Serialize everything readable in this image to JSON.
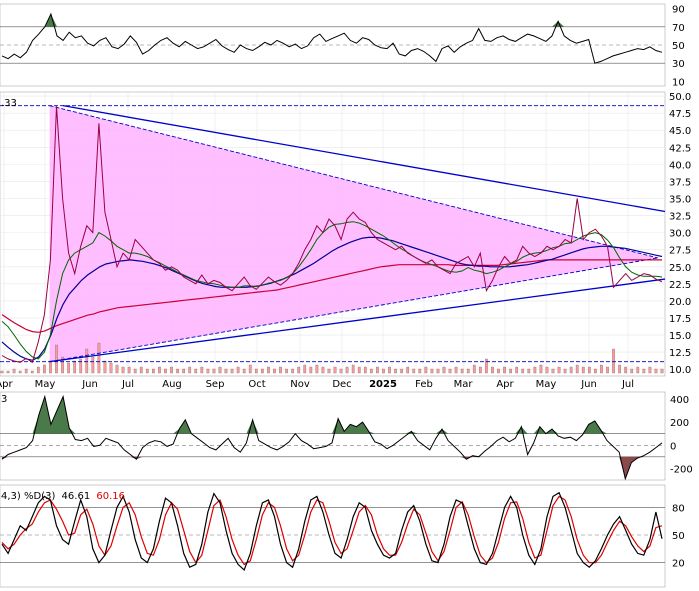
{
  "chart_data": [
    {
      "panel": "rsi",
      "type": "line",
      "y_ticks": [
        10,
        30,
        50,
        70,
        90
      ],
      "ylim": [
        5,
        95
      ],
      "guide_lines": [
        70,
        50,
        30
      ],
      "values": [
        38,
        35,
        40,
        36,
        42,
        55,
        62,
        70,
        84,
        60,
        55,
        64,
        58,
        60,
        52,
        49,
        55,
        58,
        48,
        46,
        51,
        60,
        53,
        40,
        44,
        50,
        55,
        58,
        52,
        48,
        54,
        50,
        46,
        48,
        52,
        56,
        49,
        45,
        42,
        50,
        46,
        44,
        48,
        53,
        50,
        55,
        52,
        48,
        51,
        46,
        49,
        58,
        62,
        54,
        57,
        60,
        63,
        55,
        52,
        58,
        56,
        50,
        47,
        46,
        52,
        40,
        38,
        44,
        46,
        43,
        38,
        32,
        46,
        49,
        42,
        48,
        52,
        55,
        68,
        55,
        54,
        58,
        60,
        56,
        54,
        58,
        62,
        60,
        57,
        54,
        60,
        76,
        60,
        55,
        52,
        54,
        56,
        30,
        32,
        35,
        38,
        40,
        42,
        44,
        46,
        45,
        48,
        44,
        42
      ]
    },
    {
      "panel": "price",
      "type": "line",
      "y_ticks": [
        "10.0",
        "12.5",
        "15.0",
        "17.5",
        "20.0",
        "22.5",
        "25.0",
        "27.5",
        "30.0",
        "32.5",
        "35.0",
        "37.5",
        "40.0",
        "42.5",
        "45.0",
        "47.5",
        "50.0"
      ],
      "top_left_label": ".33",
      "x_ticks": [
        "Apr",
        "May",
        "Jun",
        "Jul",
        "Aug",
        "Sep",
        "Oct",
        "Nov",
        "Dec",
        "2025",
        "Feb",
        "Mar",
        "Apr",
        "May",
        "Jun",
        "Jul"
      ],
      "price": [
        12.0,
        11.5,
        11.2,
        11.0,
        11.6,
        11.0,
        14,
        18,
        26,
        48.5,
        35,
        27,
        24,
        28,
        31,
        30,
        46,
        33,
        29,
        25,
        27,
        26,
        29,
        28,
        27,
        26,
        25.5,
        24.5,
        25,
        24.5,
        23.5,
        23,
        22.5,
        23.8,
        22.5,
        23,
        22.7,
        22,
        21.5,
        22.5,
        23.5,
        22.2,
        21.7,
        22.6,
        23.5,
        22.8,
        22.3,
        23,
        24,
        25.5,
        27.5,
        29,
        31,
        30,
        32,
        31,
        29,
        32,
        33,
        32,
        31.5,
        30,
        29,
        28.5,
        28,
        27.5,
        28,
        27,
        26.5,
        26,
        25.5,
        26,
        25,
        24.5,
        24,
        25.5,
        26,
        26.5,
        25,
        27,
        21.5,
        23,
        25,
        26.5,
        25.5,
        26,
        28,
        27,
        26.5,
        27,
        28,
        27.5,
        28,
        29,
        28.5,
        35,
        29,
        30,
        30.5,
        29.5,
        28,
        22,
        23,
        24,
        23,
        23.5,
        24,
        23.8,
        23.2,
        22.8
      ],
      "ma_long": [
        18,
        17.4,
        16.8,
        16.3,
        15.8,
        15.5,
        15.4,
        15.6,
        16,
        16.4,
        16.7,
        17,
        17.3,
        17.6,
        17.9,
        18.1,
        18.4,
        18.6,
        18.8,
        19,
        19.1,
        19.2,
        19.3,
        19.4,
        19.5,
        19.6,
        19.7,
        19.8,
        19.9,
        20,
        20.1,
        20.2,
        20.3,
        20.4,
        20.5,
        20.6,
        20.7,
        20.8,
        20.9,
        21,
        21.1,
        21.2,
        21.3,
        21.4,
        21.5,
        21.6,
        21.8,
        22,
        22.2,
        22.4,
        22.6,
        22.8,
        23,
        23.2,
        23.4,
        23.6,
        23.8,
        24,
        24.2,
        24.4,
        24.6,
        24.8,
        25,
        25.1,
        25.2,
        25.3,
        25.3,
        25.3,
        25.3,
        25.3,
        25.3,
        25.3,
        25.3,
        25.3,
        25.2,
        25.2,
        25.2,
        25.2,
        25.2,
        25.2,
        25.2,
        25.2,
        25.3,
        25.4,
        25.5,
        25.6,
        25.7,
        25.8,
        25.9,
        26,
        26,
        26,
        26,
        26,
        26,
        26,
        26,
        26,
        26,
        26,
        26,
        26,
        26,
        26,
        26,
        26,
        26,
        26,
        26
      ],
      "ma_mid": [
        14,
        13.2,
        12.5,
        11.9,
        11.5,
        11.3,
        11.8,
        13,
        15,
        17.5,
        19.5,
        21,
        22,
        23,
        23.8,
        24.4,
        25,
        25.4,
        25.6,
        25.8,
        25.9,
        26,
        25.9,
        25.8,
        25.6,
        25.4,
        25.1,
        24.8,
        24.4,
        24,
        23.6,
        23.2,
        22.8,
        22.5,
        22.3,
        22.1,
        22,
        22,
        22,
        22,
        22,
        22.1,
        22.2,
        22.4,
        22.6,
        22.9,
        23.2,
        23.6,
        24,
        24.5,
        25,
        25.5,
        26.1,
        26.7,
        27.3,
        27.8,
        28.2,
        28.6,
        28.9,
        29.2,
        29.3,
        29.3,
        29.2,
        29,
        28.8,
        28.5,
        28.2,
        27.9,
        27.6,
        27.3,
        27,
        26.7,
        26.4,
        26.1,
        25.8,
        25.5,
        25.3,
        25.2,
        25.1,
        25.1,
        25,
        25,
        25,
        25,
        25.1,
        25.2,
        25.3,
        25.5,
        25.7,
        25.9,
        26.1,
        26.4,
        26.7,
        27,
        27.3,
        27.6,
        27.8,
        27.9,
        28,
        28,
        27.9,
        27.8,
        27.7,
        27.5,
        27.3,
        27.1,
        26.9,
        26.7,
        26.5
      ],
      "ma_short": [
        17,
        16.2,
        15,
        13.7,
        12.6,
        11.8,
        11.5,
        12.5,
        15,
        20,
        24,
        26,
        27,
        27.5,
        28,
        28.5,
        30,
        29.5,
        28.8,
        28,
        27.5,
        27,
        27,
        26.8,
        26.5,
        26,
        25.6,
        25.1,
        24.7,
        24.2,
        23.8,
        23.4,
        23,
        22.8,
        22.6,
        22.5,
        22.3,
        22.1,
        22,
        22,
        22.2,
        22.2,
        22.1,
        22.3,
        22.6,
        22.8,
        23,
        23.4,
        24,
        25,
        26.2,
        27.5,
        29,
        30,
        30.8,
        31.2,
        31.3,
        31.5,
        31.6,
        31.4,
        31,
        30.5,
        30,
        29.5,
        28.9,
        28.2,
        27.6,
        27.1,
        26.5,
        26,
        25.6,
        25.3,
        25,
        24.6,
        24.3,
        24.2,
        24.4,
        24.9,
        24.5,
        24.3,
        24,
        24.2,
        24.5,
        25,
        25.4,
        25.8,
        26.4,
        26.8,
        27,
        27.1,
        27.4,
        27.8,
        28,
        28.4,
        28.5,
        29,
        29.5,
        29.8,
        30,
        29.7,
        28.9,
        27.8,
        26.3,
        25,
        24.2,
        23.8,
        23.6,
        23.6,
        23.6,
        23.5
      ],
      "volume": [
        1,
        1,
        2,
        1,
        2,
        1,
        3,
        4,
        6,
        14,
        8,
        5,
        6,
        7,
        12,
        8,
        15,
        6,
        5,
        4,
        3,
        3,
        2,
        3,
        2,
        2,
        3,
        2,
        3,
        2,
        2,
        3,
        2,
        3,
        2,
        2,
        3,
        2,
        2,
        3,
        2,
        4,
        2,
        2,
        3,
        2,
        3,
        2,
        2,
        3,
        4,
        3,
        4,
        3,
        2,
        3,
        2,
        3,
        4,
        3,
        3,
        2,
        3,
        2,
        3,
        2,
        2,
        3,
        2,
        2,
        3,
        2,
        2,
        3,
        2,
        3,
        2,
        2,
        4,
        3,
        7,
        3,
        2,
        3,
        2,
        3,
        2,
        2,
        3,
        4,
        3,
        2,
        3,
        2,
        3,
        4,
        3,
        3,
        2,
        4,
        3,
        12,
        4,
        3,
        2,
        3,
        2,
        3,
        2,
        2
      ],
      "triangle_upper": [
        [
          49.6,
          48.6
        ],
        [
          658,
          26.3
        ]
      ],
      "triangle_lower": [
        [
          49.6,
          11.1
        ],
        [
          658,
          26.3
        ]
      ],
      "trend_upper": [
        [
          63,
          48.6
        ],
        [
          665,
          33.1
        ]
      ],
      "trend_lower": [
        [
          49.6,
          11.1
        ],
        [
          665,
          23.2
        ]
      ],
      "horizontal_lines": [
        48.6,
        11.1
      ]
    },
    {
      "panel": "cci",
      "type": "line",
      "top_left_label": "3",
      "y_ticks": [
        400,
        200,
        0,
        -200
      ],
      "ylim": [
        -300,
        460
      ],
      "guide_lines": [
        100,
        0,
        -100
      ],
      "values": [
        -120,
        -80,
        -60,
        -40,
        -20,
        40,
        260,
        420,
        180,
        300,
        420,
        150,
        50,
        40,
        60,
        -10,
        0,
        60,
        40,
        20,
        -40,
        -80,
        -120,
        -20,
        20,
        40,
        30,
        -10,
        10,
        140,
        220,
        100,
        60,
        20,
        -20,
        -40,
        10,
        60,
        -20,
        -60,
        20,
        220,
        40,
        10,
        -20,
        -40,
        -10,
        30,
        100,
        40,
        10,
        -30,
        -20,
        -10,
        20,
        230,
        120,
        180,
        160,
        200,
        120,
        30,
        10,
        -30,
        0,
        40,
        80,
        120,
        40,
        0,
        -40,
        60,
        140,
        40,
        -10,
        -60,
        -120,
        -90,
        -100,
        -50,
        -10,
        40,
        70,
        30,
        60,
        160,
        -80,
        20,
        160,
        100,
        140,
        80,
        60,
        70,
        40,
        90,
        180,
        210,
        130,
        40,
        -10,
        -60,
        -290,
        -150,
        -110,
        -90,
        -60,
        -20,
        20
      ]
    },
    {
      "panel": "stochastic",
      "type": "line",
      "label_prefix": "4,3) %D(3)",
      "k_value": "46.61",
      "d_value": "60.16",
      "y_ticks": [
        80,
        50,
        20
      ],
      "ylim": [
        0,
        100
      ],
      "guide_lines": [
        80,
        50,
        20
      ],
      "k": [
        40,
        30,
        45,
        60,
        55,
        70,
        85,
        92,
        88,
        60,
        45,
        40,
        65,
        88,
        70,
        35,
        20,
        28,
        55,
        80,
        92,
        75,
        45,
        25,
        20,
        35,
        65,
        90,
        85,
        60,
        30,
        15,
        18,
        40,
        75,
        95,
        85,
        55,
        30,
        18,
        12,
        30,
        60,
        85,
        88,
        70,
        40,
        20,
        15,
        35,
        65,
        88,
        92,
        75,
        50,
        30,
        25,
        45,
        70,
        85,
        80,
        55,
        40,
        28,
        25,
        30,
        55,
        75,
        82,
        65,
        40,
        22,
        20,
        40,
        70,
        88,
        85,
        60,
        35,
        20,
        18,
        30,
        55,
        80,
        92,
        80,
        50,
        28,
        18,
        35,
        70,
        92,
        96,
        80,
        55,
        30,
        20,
        15,
        22,
        35,
        50,
        62,
        70,
        55,
        40,
        30,
        28,
        45,
        75,
        46
      ],
      "d": [
        42,
        35,
        40,
        50,
        57,
        62,
        75,
        85,
        88,
        78,
        65,
        50,
        52,
        72,
        78,
        62,
        38,
        28,
        38,
        60,
        80,
        85,
        72,
        48,
        30,
        28,
        45,
        72,
        85,
        78,
        55,
        32,
        20,
        28,
        55,
        82,
        88,
        70,
        45,
        28,
        18,
        22,
        45,
        72,
        85,
        80,
        60,
        35,
        22,
        28,
        50,
        75,
        88,
        85,
        65,
        42,
        30,
        35,
        55,
        75,
        82,
        72,
        50,
        35,
        28,
        28,
        42,
        62,
        78,
        72,
        52,
        32,
        22,
        32,
        55,
        80,
        86,
        72,
        48,
        28,
        20,
        25,
        42,
        68,
        85,
        86,
        68,
        42,
        25,
        28,
        55,
        82,
        92,
        88,
        70,
        45,
        28,
        20,
        20,
        28,
        42,
        55,
        65,
        60,
        48,
        38,
        32,
        38,
        58,
        60
      ]
    }
  ]
}
